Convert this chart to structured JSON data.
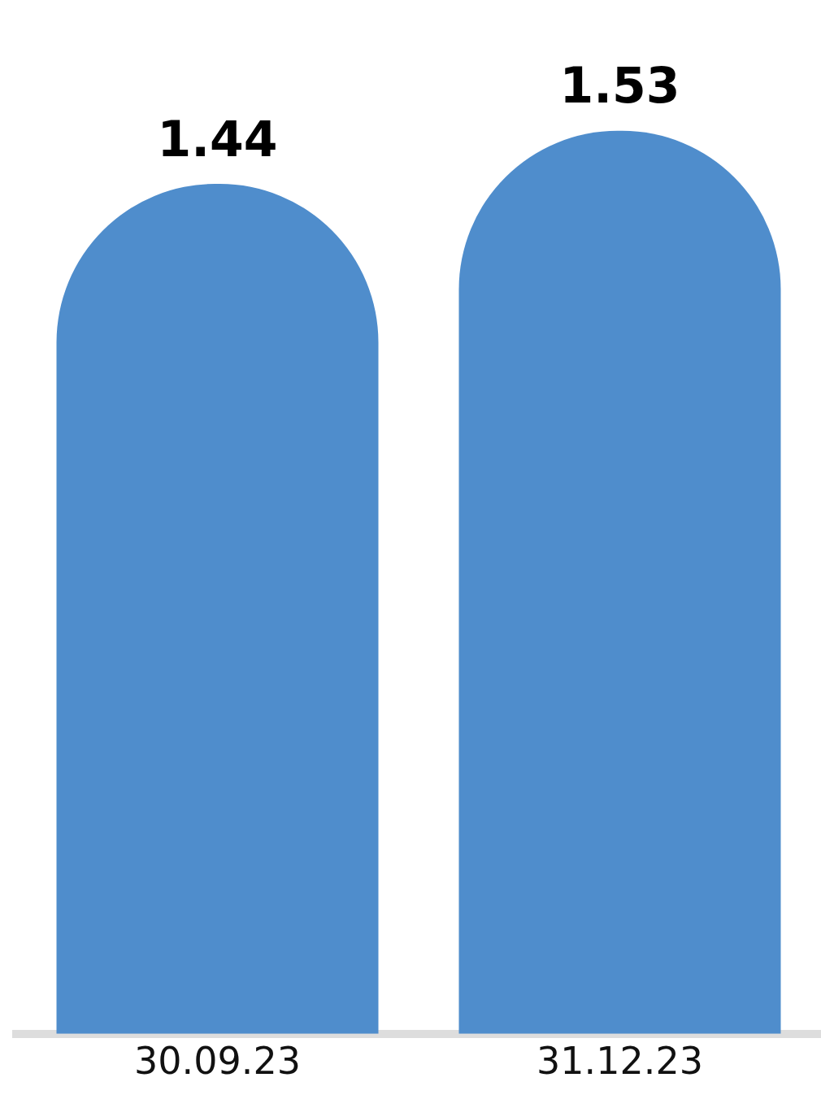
{
  "chart_data": {
    "type": "bar",
    "categories": [
      "30.09.23",
      "31.12.23"
    ],
    "values": [
      1.44,
      1.53
    ],
    "color": "#4f8dcc",
    "data_labels": true,
    "tick_labels": "x",
    "grid": false,
    "legend": false
  }
}
